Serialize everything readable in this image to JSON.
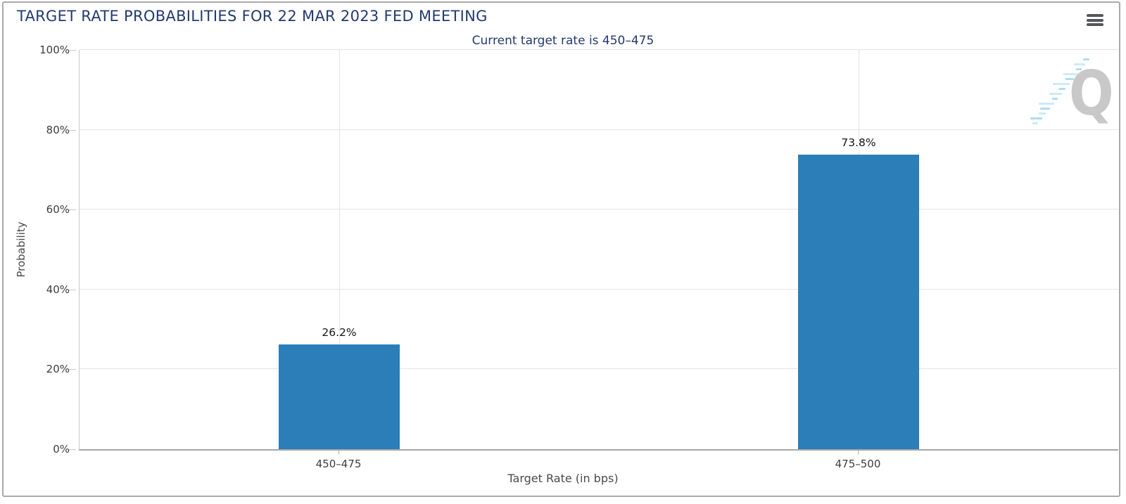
{
  "header": {
    "title": "TARGET RATE PROBABILITIES FOR 22 MAR 2023 FED MEETING",
    "menu_icon": "hamburger-icon"
  },
  "watermark": {
    "letter": "Q",
    "icon": "quikstrike-logo-icon"
  },
  "chart_data": {
    "type": "bar",
    "title": "TARGET RATE PROBABILITIES FOR 22 MAR 2023 FED MEETING",
    "subtitle": "Current target rate is 450–475",
    "categories": [
      "450–475",
      "475–500"
    ],
    "values": [
      26.2,
      73.8
    ],
    "value_labels": [
      "26.2%",
      "73.8%"
    ],
    "xlabel": "Target Rate (in bps)",
    "ylabel": "Probability",
    "ylim": [
      0,
      100
    ],
    "yticks": [
      0,
      20,
      40,
      60,
      80,
      100
    ],
    "ytick_labels": [
      "0%",
      "20%",
      "40%",
      "60%",
      "80%",
      "100%"
    ],
    "grid": true,
    "legend_position": "none",
    "bar_color": "#2b7eb8"
  },
  "colors": {
    "accent_navy": "#223a70",
    "bar_blue": "#2b7eb8",
    "grid_gray": "#e4e4e4",
    "axis_gray": "#a6a6a6",
    "watermark_gray": "#c8c8c8",
    "watermark_blue": "#a5d8ee",
    "border_gray": "#a9a9a9"
  }
}
